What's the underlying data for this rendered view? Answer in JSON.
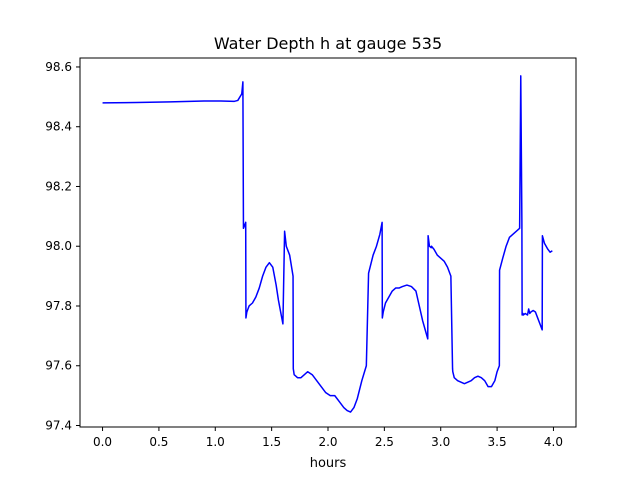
{
  "chart_data": {
    "type": "line",
    "title": "Water Depth h at gauge 535",
    "xlabel": "hours",
    "ylabel": "",
    "xlim": [
      -0.2,
      4.2
    ],
    "ylim": [
      97.395,
      98.63
    ],
    "xticks": [
      0.0,
      0.5,
      1.0,
      1.5,
      2.0,
      2.5,
      3.0,
      3.5,
      4.0
    ],
    "xtick_labels": [
      "0.0",
      "0.5",
      "1.0",
      "1.5",
      "2.0",
      "2.5",
      "3.0",
      "3.5",
      "4.0"
    ],
    "yticks": [
      97.4,
      97.6,
      97.8,
      98.0,
      98.2,
      98.4,
      98.6
    ],
    "ytick_labels": [
      "97.4",
      "97.6",
      "97.8",
      "98.0",
      "98.2",
      "98.4",
      "98.6"
    ],
    "grid": false,
    "series": [
      {
        "color": "#0000ff",
        "x": [
          0.0,
          0.3,
          0.6,
          0.9,
          1.05,
          1.17,
          1.2,
          1.235,
          1.24,
          1.245,
          1.25,
          1.27,
          1.272,
          1.28,
          1.3,
          1.33,
          1.36,
          1.39,
          1.42,
          1.45,
          1.48,
          1.51,
          1.54,
          1.56,
          1.58,
          1.6,
          1.615,
          1.618,
          1.63,
          1.66,
          1.69,
          1.692,
          1.7,
          1.73,
          1.76,
          1.79,
          1.82,
          1.86,
          1.9,
          1.94,
          1.98,
          2.02,
          2.06,
          2.1,
          2.14,
          2.17,
          2.2,
          2.23,
          2.26,
          2.3,
          2.34,
          2.36,
          2.4,
          2.43,
          2.46,
          2.48,
          2.482,
          2.49,
          2.51,
          2.54,
          2.57,
          2.6,
          2.63,
          2.66,
          2.7,
          2.74,
          2.78,
          2.81,
          2.84,
          2.87,
          2.885,
          2.888,
          2.9,
          2.915,
          2.918,
          2.94,
          2.97,
          3.0,
          3.03,
          3.06,
          3.09,
          3.105,
          3.107,
          3.12,
          3.15,
          3.18,
          3.21,
          3.24,
          3.27,
          3.3,
          3.33,
          3.36,
          3.39,
          3.42,
          3.45,
          3.48,
          3.5,
          3.52,
          3.522,
          3.55,
          3.58,
          3.61,
          3.64,
          3.67,
          3.7,
          3.71,
          3.72,
          3.722,
          3.73,
          3.732,
          3.75,
          3.77,
          3.78,
          3.79,
          3.8,
          3.82,
          3.84,
          3.86,
          3.88,
          3.9,
          3.902,
          3.92,
          3.95,
          3.97,
          3.99
        ],
        "y": [
          98.48,
          98.481,
          98.483,
          98.486,
          98.486,
          98.485,
          98.488,
          98.51,
          98.53,
          98.55,
          98.06,
          98.08,
          97.76,
          97.78,
          97.8,
          97.81,
          97.83,
          97.86,
          97.9,
          97.93,
          97.945,
          97.93,
          97.87,
          97.82,
          97.78,
          97.74,
          98.05,
          98.04,
          98.0,
          97.97,
          97.9,
          97.59,
          97.57,
          97.56,
          97.56,
          97.57,
          97.58,
          97.57,
          97.55,
          97.53,
          97.51,
          97.5,
          97.5,
          97.48,
          97.46,
          97.45,
          97.445,
          97.46,
          97.49,
          97.55,
          97.6,
          97.91,
          97.97,
          98.0,
          98.04,
          98.08,
          97.76,
          97.78,
          97.81,
          97.83,
          97.85,
          97.86,
          97.86,
          97.865,
          97.87,
          97.865,
          97.85,
          97.8,
          97.75,
          97.71,
          97.69,
          98.035,
          98.0,
          97.995,
          98.0,
          97.99,
          97.97,
          97.96,
          97.95,
          97.93,
          97.9,
          97.59,
          97.58,
          97.56,
          97.55,
          97.545,
          97.54,
          97.545,
          97.55,
          97.56,
          97.565,
          97.56,
          97.55,
          97.53,
          97.53,
          97.55,
          97.58,
          97.6,
          97.92,
          97.96,
          98.0,
          98.03,
          98.04,
          98.05,
          98.06,
          98.57,
          98.08,
          97.77,
          97.775,
          97.77,
          97.775,
          97.77,
          97.79,
          97.775,
          97.78,
          97.785,
          97.78,
          97.76,
          97.74,
          97.72,
          98.035,
          98.01,
          97.99,
          97.98,
          97.985
        ]
      }
    ]
  }
}
